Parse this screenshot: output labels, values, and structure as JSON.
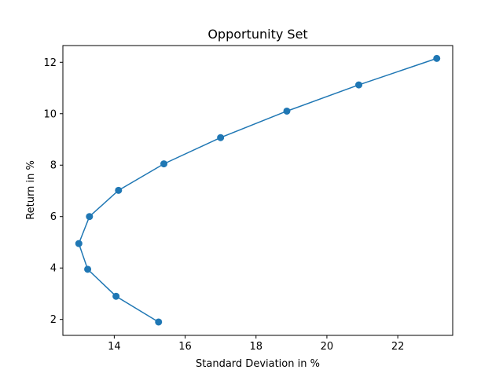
{
  "chart_data": {
    "type": "line",
    "title": "Opportunity Set",
    "xlabel": "Standard Deviation in %",
    "ylabel": "Return in %",
    "xlim": [
      12.55,
      23.55
    ],
    "ylim": [
      1.38,
      12.65
    ],
    "xticks": [
      14,
      16,
      18,
      20,
      22
    ],
    "yticks": [
      2,
      4,
      6,
      8,
      10,
      12
    ],
    "grid": false,
    "line_color": "#1f77b4",
    "markers": true,
    "series": [
      {
        "x": [
          15.25,
          14.05,
          13.25,
          13.0,
          13.3,
          14.12,
          15.4,
          17.0,
          18.87,
          20.9,
          23.1
        ],
        "y": [
          1.9,
          2.9,
          3.95,
          4.95,
          6.0,
          7.02,
          8.05,
          9.07,
          10.1,
          11.12,
          12.15
        ]
      }
    ]
  }
}
